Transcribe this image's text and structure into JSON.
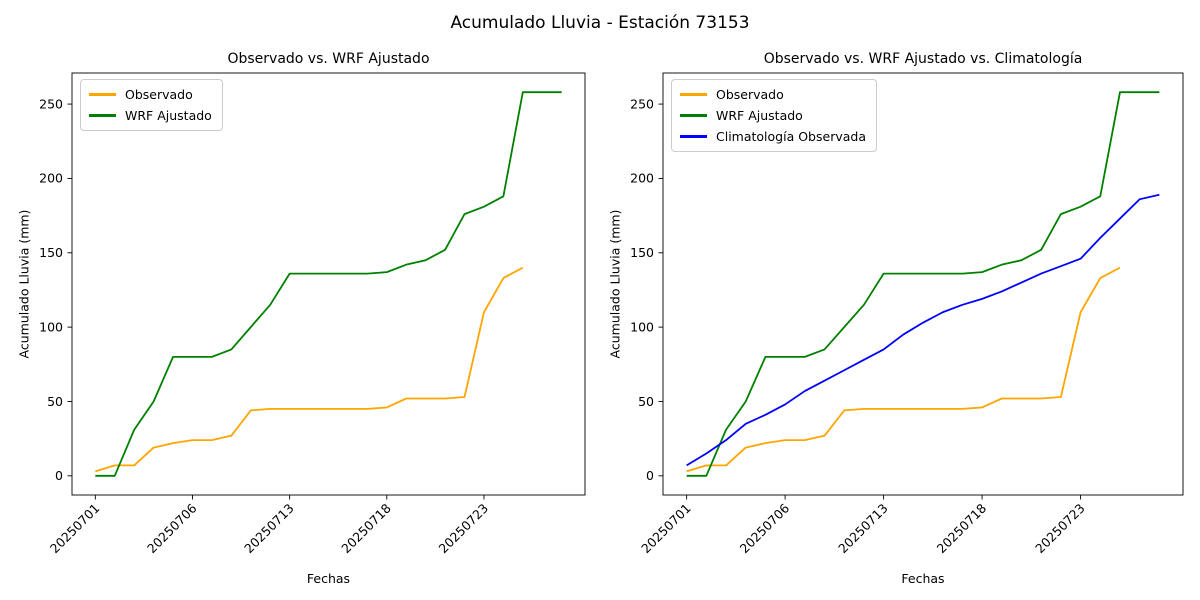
{
  "figure": {
    "title": "Acumulado Lluvia - Estación 73153",
    "background_color": "#ffffff",
    "text_color": "#000000"
  },
  "chart_data": [
    {
      "type": "line",
      "title": "Observado vs. WRF Ajustado",
      "xlabel": "Fechas",
      "ylabel": "Acumulado Lluvia (mm)",
      "grid": false,
      "legend_position": "upper left",
      "yticks": [
        0,
        50,
        100,
        150,
        200,
        250
      ],
      "ylim": [
        -13,
        271
      ],
      "xticks": [
        {
          "pos": 0,
          "label": "20250701"
        },
        {
          "pos": 5,
          "label": "20250706"
        },
        {
          "pos": 10,
          "label": "20250713"
        },
        {
          "pos": 15,
          "label": "20250718"
        },
        {
          "pos": 20,
          "label": "20250723"
        }
      ],
      "xtick_rotation_deg": 45,
      "series": [
        {
          "name": "Observado",
          "color": "#FFA500",
          "values": [
            3,
            7,
            7,
            19,
            22,
            24,
            24,
            27,
            44,
            45,
            45,
            45,
            45,
            45,
            45,
            46,
            52,
            52,
            52,
            53,
            110,
            133,
            140
          ]
        },
        {
          "name": "WRF Ajustado",
          "color": "#008000",
          "values": [
            0,
            0,
            31,
            50,
            80,
            80,
            80,
            85,
            100,
            115,
            136,
            136,
            136,
            136,
            136,
            137,
            142,
            145,
            152,
            176,
            181,
            188,
            258,
            258,
            258
          ]
        }
      ]
    },
    {
      "type": "line",
      "title": "Observado vs. WRF Ajustado vs. Climatología",
      "xlabel": "Fechas",
      "ylabel": "Acumulado Lluvia (mm)",
      "grid": false,
      "legend_position": "upper left",
      "yticks": [
        0,
        50,
        100,
        150,
        200,
        250
      ],
      "ylim": [
        -13,
        271
      ],
      "xticks": [
        {
          "pos": 0,
          "label": "20250701"
        },
        {
          "pos": 5,
          "label": "20250706"
        },
        {
          "pos": 10,
          "label": "20250713"
        },
        {
          "pos": 15,
          "label": "20250718"
        },
        {
          "pos": 20,
          "label": "20250723"
        }
      ],
      "xtick_rotation_deg": 45,
      "series": [
        {
          "name": "Observado",
          "color": "#FFA500",
          "values": [
            3,
            7,
            7,
            19,
            22,
            24,
            24,
            27,
            44,
            45,
            45,
            45,
            45,
            45,
            45,
            46,
            52,
            52,
            52,
            53,
            110,
            133,
            140
          ]
        },
        {
          "name": "WRF Ajustado",
          "color": "#008000",
          "values": [
            0,
            0,
            31,
            50,
            80,
            80,
            80,
            85,
            100,
            115,
            136,
            136,
            136,
            136,
            136,
            137,
            142,
            145,
            152,
            176,
            181,
            188,
            258,
            258,
            258
          ]
        },
        {
          "name": "Climatología Observada",
          "color": "#0000FF",
          "values": [
            7,
            15,
            24,
            35,
            41,
            48,
            57,
            64,
            71,
            78,
            85,
            95,
            103,
            110,
            115,
            119,
            124,
            130,
            136,
            141,
            146,
            160,
            173,
            186,
            189
          ]
        }
      ]
    }
  ]
}
